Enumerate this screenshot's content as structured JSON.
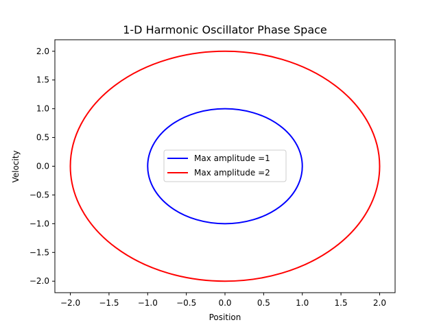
{
  "chart_data": {
    "type": "line",
    "title": "1-D Harmonic Oscillator Phase Space",
    "xlabel": "Position",
    "ylabel": "Velocity",
    "xlim": [
      -2.2,
      2.2
    ],
    "ylim": [
      -2.2,
      2.2
    ],
    "xticks": [
      -2.0,
      -1.5,
      -1.0,
      -0.5,
      0.0,
      0.5,
      1.0,
      1.5,
      2.0
    ],
    "yticks": [
      -2.0,
      -1.5,
      -1.0,
      -0.5,
      0.0,
      0.5,
      1.0,
      1.5,
      2.0
    ],
    "xtick_labels": [
      "−2.0",
      "−1.5",
      "−1.0",
      "−0.5",
      "0.0",
      "0.5",
      "1.0",
      "1.5",
      "2.0"
    ],
    "ytick_labels": [
      "−2.0",
      "−1.5",
      "−1.0",
      "−0.5",
      "0.0",
      "0.5",
      "1.0",
      "1.5",
      "2.0"
    ],
    "grid": false,
    "legend_position": "center",
    "series": [
      {
        "name": "Max amplitude =1",
        "color": "#0000ff",
        "amplitude": 1.0
      },
      {
        "name": "Max amplitude =2",
        "color": "#ff0000",
        "amplitude": 2.0
      }
    ]
  }
}
